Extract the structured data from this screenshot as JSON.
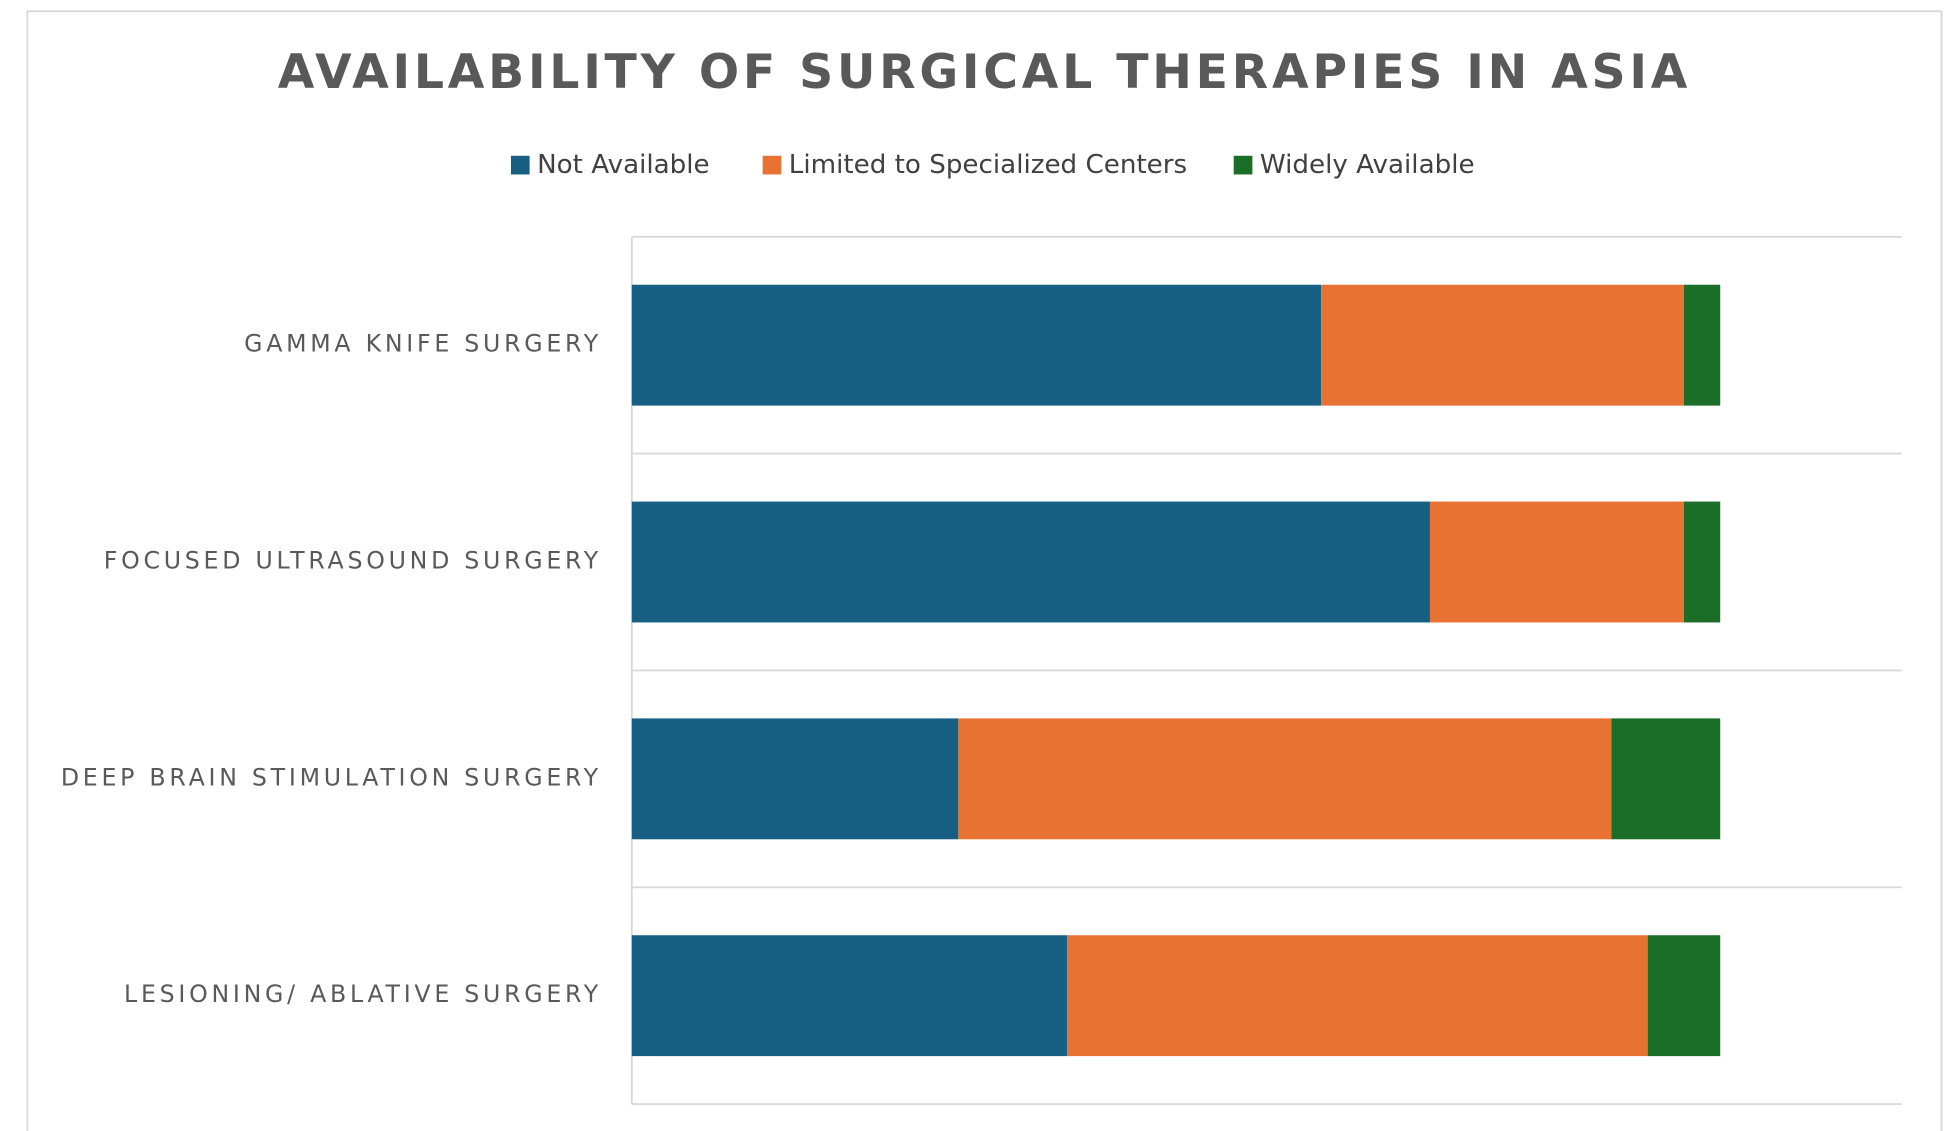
{
  "chart_data": {
    "type": "stacked-bar",
    "orientation": "horizontal",
    "title": "AVAILABILITY OF SURGICAL THERAPIES IN ASIA",
    "categories": [
      "GAMMA KNIFE SURGERY",
      "FOCUSED ULTRASOUND SURGERY",
      "DEEP BRAIN STIMULATION SURGERY",
      "LESIONING/ ABLATIVE SURGERY"
    ],
    "series": [
      {
        "name": "Not Available",
        "color": "#176083",
        "values": [
          19,
          22,
          9,
          12
        ]
      },
      {
        "name": "Limited to Specialized Centers",
        "color": "#e87232",
        "values": [
          10,
          7,
          18,
          16
        ]
      },
      {
        "name": "Widely Available",
        "color": "#1b6e27",
        "values": [
          1,
          1,
          3,
          2
        ]
      }
    ],
    "xlim": [
      0,
      35
    ],
    "legend": "top"
  }
}
